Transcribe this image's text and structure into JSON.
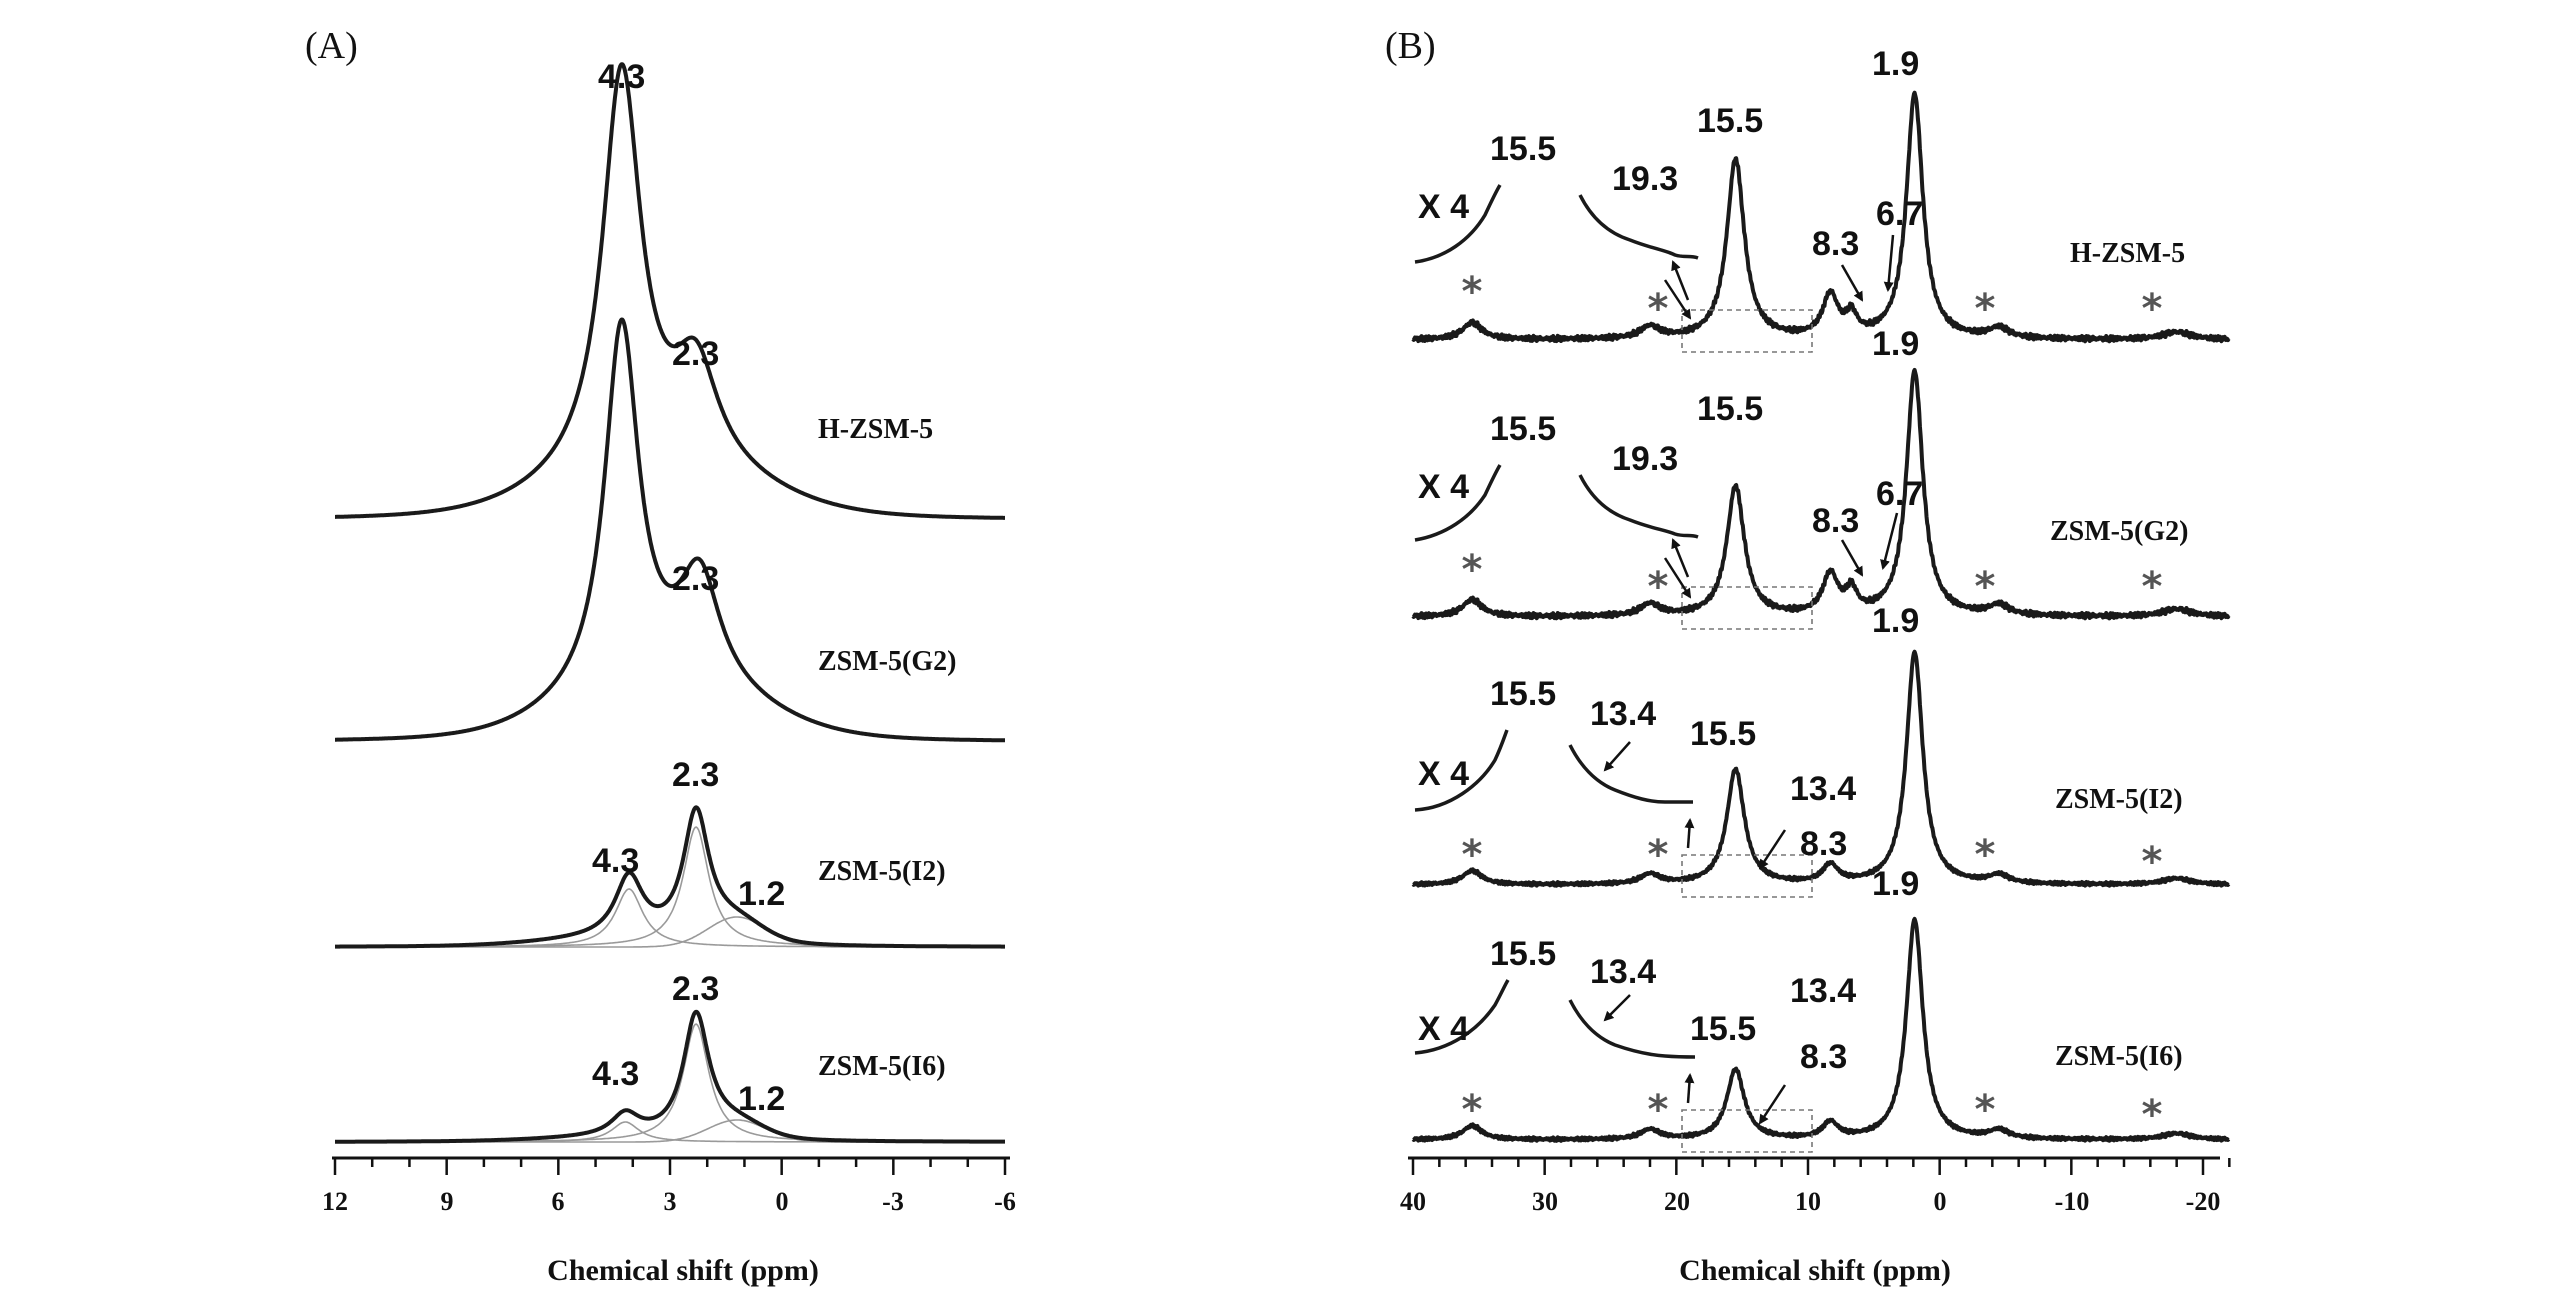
{
  "panels": [
    {
      "letter": "(A)",
      "xlabel": "Chemical shift (ppm)",
      "ticks": [
        "12",
        "9",
        "6",
        "3",
        "0",
        "-3",
        "-6"
      ]
    },
    {
      "letter": "(B)",
      "xlabel": "Chemical shift (ppm)",
      "ticks": [
        "40",
        "30",
        "20",
        "10",
        "0",
        "-10",
        "-20"
      ]
    }
  ],
  "chart_data": [
    {
      "type": "line",
      "title": "",
      "xlabel": "Chemical shift (ppm)",
      "ylabel": "",
      "xlim": [
        12,
        -6
      ],
      "x_reversed": true,
      "series": [
        {
          "name": "H-ZSM-5",
          "peaks": [
            {
              "label": "4.3",
              "center": 4.3
            },
            {
              "label": "2.3",
              "center": 2.3
            }
          ]
        },
        {
          "name": "ZSM-5(G2)",
          "peaks": [
            {
              "label": "2.3",
              "center": 2.3
            }
          ]
        },
        {
          "name": "ZSM-5(I2)",
          "peaks": [
            {
              "label": "4.3",
              "center": 4.3
            },
            {
              "label": "2.3",
              "center": 2.3
            },
            {
              "label": "1.2",
              "center": 1.2
            }
          ]
        },
        {
          "name": "ZSM-5(I6)",
          "peaks": [
            {
              "label": "4.3",
              "center": 4.3
            },
            {
              "label": "2.3",
              "center": 2.3
            },
            {
              "label": "1.2",
              "center": 1.2
            }
          ]
        }
      ]
    },
    {
      "type": "line",
      "title": "",
      "xlabel": "Chemical shift (ppm)",
      "ylabel": "",
      "xlim": [
        40,
        -22
      ],
      "x_reversed": true,
      "series": [
        {
          "name": "H-ZSM-5",
          "inset_magnification": "X 4",
          "peaks": [
            {
              "label": "1.9"
            },
            {
              "label": "15.5"
            },
            {
              "label": "15.5"
            },
            {
              "label": "19.3"
            },
            {
              "label": "8.3"
            },
            {
              "label": "6.7"
            }
          ]
        },
        {
          "name": "ZSM-5(G2)",
          "inset_magnification": "X 4",
          "peaks": [
            {
              "label": "1.9"
            },
            {
              "label": "15.5"
            },
            {
              "label": "15.5"
            },
            {
              "label": "19.3"
            },
            {
              "label": "8.3"
            },
            {
              "label": "6.7"
            }
          ]
        },
        {
          "name": "ZSM-5(I2)",
          "inset_magnification": "X 4",
          "peaks": [
            {
              "label": "1.9"
            },
            {
              "label": "15.5"
            },
            {
              "label": "13.4"
            },
            {
              "label": "15.5"
            },
            {
              "label": "13.4"
            },
            {
              "label": "8.3"
            }
          ]
        },
        {
          "name": "ZSM-5(I6)",
          "inset_magnification": "X 4",
          "peaks": [
            {
              "label": "1.9"
            },
            {
              "label": "15.5"
            },
            {
              "label": "13.4"
            },
            {
              "label": "15.5"
            },
            {
              "label": "13.4"
            },
            {
              "label": "8.3"
            }
          ]
        }
      ],
      "spinning_sideband_marker": "*"
    }
  ]
}
